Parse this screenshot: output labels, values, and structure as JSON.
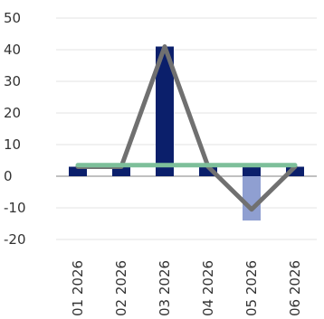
{
  "chart_data": {
    "type": "bar",
    "categories": [
      "01 2026",
      "02 2026",
      "03 2026",
      "04 2026",
      "05 2026",
      "06 2026"
    ],
    "series": [
      {
        "kind": "bar",
        "values": [
          3,
          3,
          41,
          3,
          3,
          3
        ],
        "colors": [
          "#0b1f6b",
          "#0b1f6b",
          "#0b1f6b",
          "#0b1f6b",
          "#0b1f6b",
          "#0b1f6b"
        ]
      },
      {
        "kind": "bar",
        "values": [
          null,
          null,
          null,
          null,
          -14,
          null
        ],
        "colors": [
          "#8f9fd1",
          "#8f9fd1",
          "#8f9fd1",
          "#8f9fd1",
          "#8f9fd1",
          "#8f9fd1"
        ]
      },
      {
        "kind": "line",
        "values": [
          3,
          3,
          41,
          3,
          -10.5,
          3
        ],
        "color": "#707070"
      },
      {
        "kind": "line",
        "values": [
          3.5,
          3.5,
          3.5,
          3.5,
          3.5,
          3.5
        ],
        "color": "#7dbf9a"
      }
    ],
    "ylim": [
      -20,
      50
    ],
    "yticks": [
      "-20",
      "-10",
      "0",
      "10",
      "20",
      "30",
      "40",
      "50"
    ],
    "grid": true
  }
}
